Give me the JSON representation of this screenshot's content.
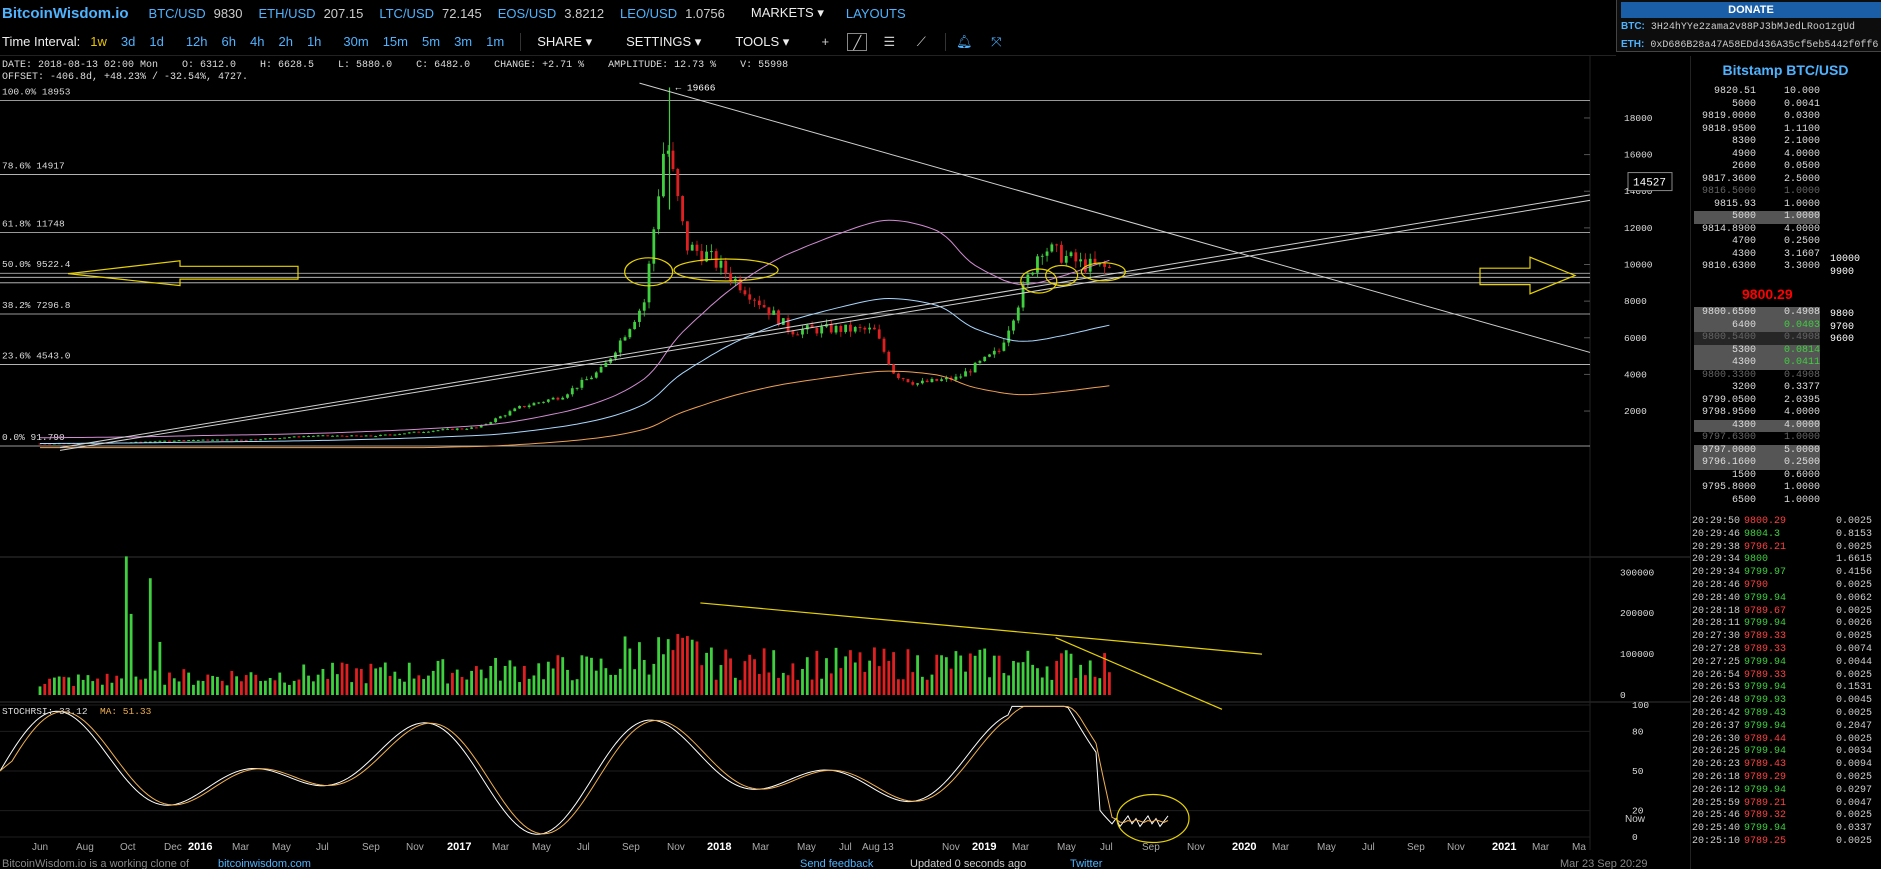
{
  "header": {
    "logo": "BitcoinWisdom.io",
    "tickers": [
      {
        "sym": "BTC/USD",
        "price": "9830"
      },
      {
        "sym": "ETH/USD",
        "price": "207.15"
      },
      {
        "sym": "LTC/USD",
        "price": "72.145"
      },
      {
        "sym": "EOS/USD",
        "price": "3.8212"
      },
      {
        "sym": "LEO/USD",
        "price": "1.0756"
      }
    ],
    "markets": "MARKETS",
    "layouts": "LAYOUTS"
  },
  "donate": {
    "title": "DONATE",
    "btc_label": "BTC:",
    "btc_addr": "3H24hYYe2zama2v88PJ3bMJedLRoo1zgUd",
    "eth_label": "ETH:",
    "eth_addr": "0xD686B28a47A58EDd436A35cf5eb5442f0ff6"
  },
  "toolbar": {
    "time_interval_label": "Time Interval:",
    "intervals": [
      "1w",
      "3d",
      "1d",
      "12h",
      "6h",
      "4h",
      "2h",
      "1h",
      "30m",
      "15m",
      "5m",
      "3m",
      "1m"
    ],
    "active_interval": "1w",
    "share": "SHARE",
    "settings": "SETTINGS",
    "tools": "TOOLS"
  },
  "info": {
    "line1": "DATE: 2018-08-13 02:00 Mon    O: 6312.0    H: 6628.5    L: 5880.0    C: 6482.0    CHANGE: +2.71 %    AMPLITUDE: 12.73 %    V: 55998",
    "line2": "OFFSET: -406.8d, +48.23% / -32.54%, 4727."
  },
  "chart_data": {
    "type": "candlestick",
    "price_axis_ticks": [
      "18000",
      "16000",
      "14000",
      "12000",
      "10000",
      "8000",
      "6000",
      "4000",
      "2000"
    ],
    "price_ylim": [
      -400,
      20400
    ],
    "fib_levels": [
      {
        "label": "100.0% 18953",
        "value": 18953
      },
      {
        "label": "78.6% 14917",
        "value": 14917
      },
      {
        "label": "61.8% 11748",
        "value": 11748
      },
      {
        "label": "50.0% 9522.4",
        "value": 9522.4
      },
      {
        "label": "38.2% 7296.8",
        "value": 7296.8
      },
      {
        "label": "23.6% 4543.0",
        "value": 4543.0
      },
      {
        "label": "0.0% 91.790",
        "value": 91.79
      }
    ],
    "peak_label": "← 19666",
    "peak_value": 19666,
    "crosshair_price": "14527",
    "volume_axis_ticks": [
      "300000",
      "200000",
      "100000",
      "0"
    ],
    "volume_ylim": [
      0,
      330000
    ],
    "stoch_label": "STOCHRSI: 33.12",
    "stoch_ma_label": "MA: 51.33",
    "stoch_axis_ticks": [
      "100",
      "80",
      "50",
      "20",
      "0"
    ],
    "x_ticks": [
      "Jun",
      "Aug",
      "Oct",
      "Dec",
      "2016",
      "Mar",
      "May",
      "Jul",
      "Sep",
      "Nov",
      "2017",
      "Mar",
      "May",
      "Jul",
      "Sep",
      "Nov",
      "2018",
      "Mar",
      "May",
      "Jul",
      "Aug 13",
      "Nov",
      "2019",
      "Mar",
      "May",
      "Jul",
      "Sep",
      "Nov",
      "2020",
      "Mar",
      "May",
      "Jul",
      "Sep",
      "Nov",
      "2021",
      "Mar",
      "Ma"
    ],
    "x_now": "Now",
    "price_path": [
      [
        "2015-06",
        230
      ],
      [
        "2015-10",
        280
      ],
      [
        "2016-01",
        420
      ],
      [
        "2016-04",
        440
      ],
      [
        "2016-07",
        650
      ],
      [
        "2016-10",
        640
      ],
      [
        "2017-01",
        950
      ],
      [
        "2017-03",
        1100
      ],
      [
        "2017-05",
        2200
      ],
      [
        "2017-07",
        2800
      ],
      [
        "2017-09",
        4300
      ],
      [
        "2017-11",
        8000
      ],
      [
        "2017-12",
        17000
      ],
      [
        "2018-01",
        11000
      ],
      [
        "2018-02",
        10500
      ],
      [
        "2018-04",
        8500
      ],
      [
        "2018-06",
        6400
      ],
      [
        "2018-08",
        6480
      ],
      [
        "2018-10",
        6400
      ],
      [
        "2018-11",
        4000
      ],
      [
        "2018-12",
        3500
      ],
      [
        "2019-02",
        3800
      ],
      [
        "2019-04",
        5300
      ],
      [
        "2019-06",
        11000
      ],
      [
        "2019-07",
        10500
      ],
      [
        "2019-08",
        10000
      ],
      [
        "2019-09",
        9800
      ]
    ],
    "colors": {
      "up": "#3fd03f",
      "down": "#e02020",
      "fib": "#cccccc",
      "trend": "#d0d0d0",
      "annot": "#e7d200",
      "band_upper": "#d28cd2",
      "band_mid": "#a8d8ff",
      "band_lower": "#f0a050",
      "stoch": "#ffffff",
      "stoch_ma": "#f0b050"
    }
  },
  "sidebar": {
    "title": "Bitstamp BTC/USD",
    "asks": [
      [
        "9820.51",
        "10.000"
      ],
      [
        "5000",
        "0.0041"
      ],
      [
        "9819.0000",
        "0.0300"
      ],
      [
        "9818.9500",
        "1.1100"
      ],
      [
        "8300",
        "2.1000"
      ],
      [
        "4900",
        "4.0000"
      ],
      [
        "2600",
        "0.0500"
      ],
      [
        "9817.3600",
        "2.5000"
      ],
      [
        "9816.5000",
        "1.0000"
      ],
      [
        "9815.93",
        "1.0000"
      ],
      [
        "5000",
        "1.0000"
      ],
      [
        "9814.8900",
        "4.0000"
      ],
      [
        "4700",
        "0.2500"
      ],
      [
        "4300",
        "3.1607"
      ],
      [
        "9810.6300",
        "3.3000"
      ]
    ],
    "ask_ext": [
      [
        "10000",
        ""
      ],
      [
        "9900",
        ""
      ]
    ],
    "mid_price": "9800.29",
    "bids": [
      [
        "9800.6500",
        "0.4908"
      ],
      [
        "6400",
        "0.0403"
      ],
      [
        "9800.5400",
        "0.4908"
      ],
      [
        "5300",
        "0.0814"
      ],
      [
        "4300",
        "0.0411"
      ],
      [
        "9800.3300",
        "0.4908"
      ],
      [
        "3200",
        "0.3377"
      ],
      [
        "9799.0500",
        "2.0395"
      ],
      [
        "9798.9500",
        "4.0000"
      ],
      [
        "4300",
        "4.0000"
      ],
      [
        "9797.6300",
        "1.0000"
      ],
      [
        "9797.0000",
        "5.0000"
      ],
      [
        "9796.1600",
        "0.2500"
      ],
      [
        "1500",
        "0.6000"
      ],
      [
        "9795.8000",
        "1.0000"
      ],
      [
        "6500",
        "1.0000"
      ]
    ],
    "bid_ext": [
      "9800",
      "9700",
      "9600"
    ],
    "trades": [
      [
        "20:29:50",
        "9800.29",
        "0.0025"
      ],
      [
        "20:29:46",
        "9804.3",
        "0.8153"
      ],
      [
        "20:29:38",
        "9796.21",
        "0.0025"
      ],
      [
        "20:29:34",
        "9800",
        "1.6615"
      ],
      [
        "20:29:34",
        "9799.97",
        "0.4156"
      ],
      [
        "20:28:46",
        "9790",
        "0.0025"
      ],
      [
        "20:28:40",
        "9799.94",
        "0.0062"
      ],
      [
        "20:28:18",
        "9789.67",
        "0.0025"
      ],
      [
        "20:28:11",
        "9799.94",
        "0.0026"
      ],
      [
        "20:27:30",
        "9789.33",
        "0.0025"
      ],
      [
        "20:27:28",
        "9789.33",
        "0.0074"
      ],
      [
        "20:27:25",
        "9799.94",
        "0.0044"
      ],
      [
        "20:26:54",
        "9789.33",
        "0.0025"
      ],
      [
        "20:26:53",
        "9799.94",
        "0.1531"
      ],
      [
        "20:26:48",
        "9799.93",
        "0.0045"
      ],
      [
        "20:26:42",
        "9789.43",
        "0.0025"
      ],
      [
        "20:26:37",
        "9799.94",
        "0.2047"
      ],
      [
        "20:26:30",
        "9789.44",
        "0.0025"
      ],
      [
        "20:26:25",
        "9799.94",
        "0.0034"
      ],
      [
        "20:26:23",
        "9789.43",
        "0.0094"
      ],
      [
        "20:26:18",
        "9789.29",
        "0.0025"
      ],
      [
        "20:26:12",
        "9799.94",
        "0.0297"
      ],
      [
        "20:25:59",
        "9789.21",
        "0.0047"
      ],
      [
        "20:25:46",
        "9789.32",
        "0.0025"
      ],
      [
        "20:25:40",
        "9799.94",
        "0.0337"
      ],
      [
        "20:25:10",
        "9789.25",
        "0.0025"
      ]
    ],
    "trade_dirs": [
      "down",
      "up",
      "down",
      "up",
      "up",
      "down",
      "up",
      "down",
      "up",
      "down",
      "down",
      "up",
      "down",
      "up",
      "up",
      "up",
      "up",
      "down",
      "up",
      "down",
      "down",
      "up",
      "down",
      "down",
      "up",
      "down"
    ]
  },
  "footer": {
    "text1": "BitcoinWisdom.io is a working clone of ",
    "link1": "bitcoinwisdom.com",
    "feedback": "Send feedback",
    "updated": "Updated 0 seconds ago",
    "twitter": "Twitter",
    "time": "Mar 23 Sep 20:29"
  }
}
